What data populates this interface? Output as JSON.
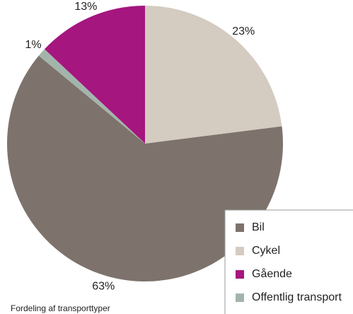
{
  "chart_data": {
    "type": "pie",
    "caption": "Fordeling af transporttyper",
    "categories": [
      "Bil",
      "Cykel",
      "Gående",
      "Offentlig transport"
    ],
    "values": [
      63,
      23,
      13,
      1
    ],
    "value_labels": [
      "63%",
      "23%",
      "13%",
      "1%"
    ],
    "colors": [
      "#7d736c",
      "#d4cbc1",
      "#a5167f",
      "#a3b5ab"
    ],
    "legend": "bottom-right"
  }
}
